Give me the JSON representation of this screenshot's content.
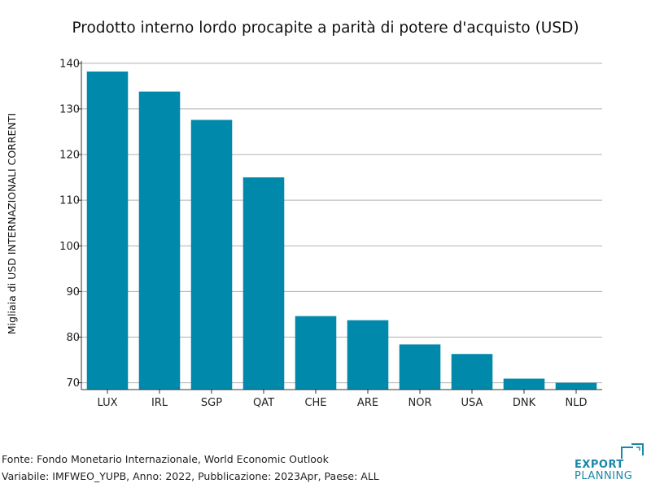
{
  "chart_data": {
    "type": "bar",
    "title": "Prodotto interno lordo procapite a parità di potere d'acquisto (USD)",
    "xlabel": "",
    "ylabel": "Migliaia di USD INTERNAZIONALI CORRENTI",
    "categories": [
      "LUX",
      "IRL",
      "SGP",
      "QAT",
      "CHE",
      "ARE",
      "NOR",
      "USA",
      "DNK",
      "NLD"
    ],
    "values": [
      138.2,
      133.8,
      127.6,
      115.0,
      84.6,
      83.7,
      78.4,
      76.3,
      70.9,
      70.0
    ],
    "ylim": [
      68.5,
      140.5
    ],
    "yticks": [
      70,
      80,
      90,
      100,
      110,
      120,
      130,
      140
    ],
    "grid": true,
    "bar_color": "#0089aa"
  },
  "footer": {
    "source": "Fonte: Fondo Monetario Internazionale, World Economic Outlook",
    "variable": "Variabile: IMFWEO_YUPB, Anno: 2022, Pubblicazione: 2023Apr, Paese: ALL"
  },
  "logo": {
    "line1": "EXPORT",
    "line2": "PLANNING",
    "color": "#1c86a8"
  }
}
